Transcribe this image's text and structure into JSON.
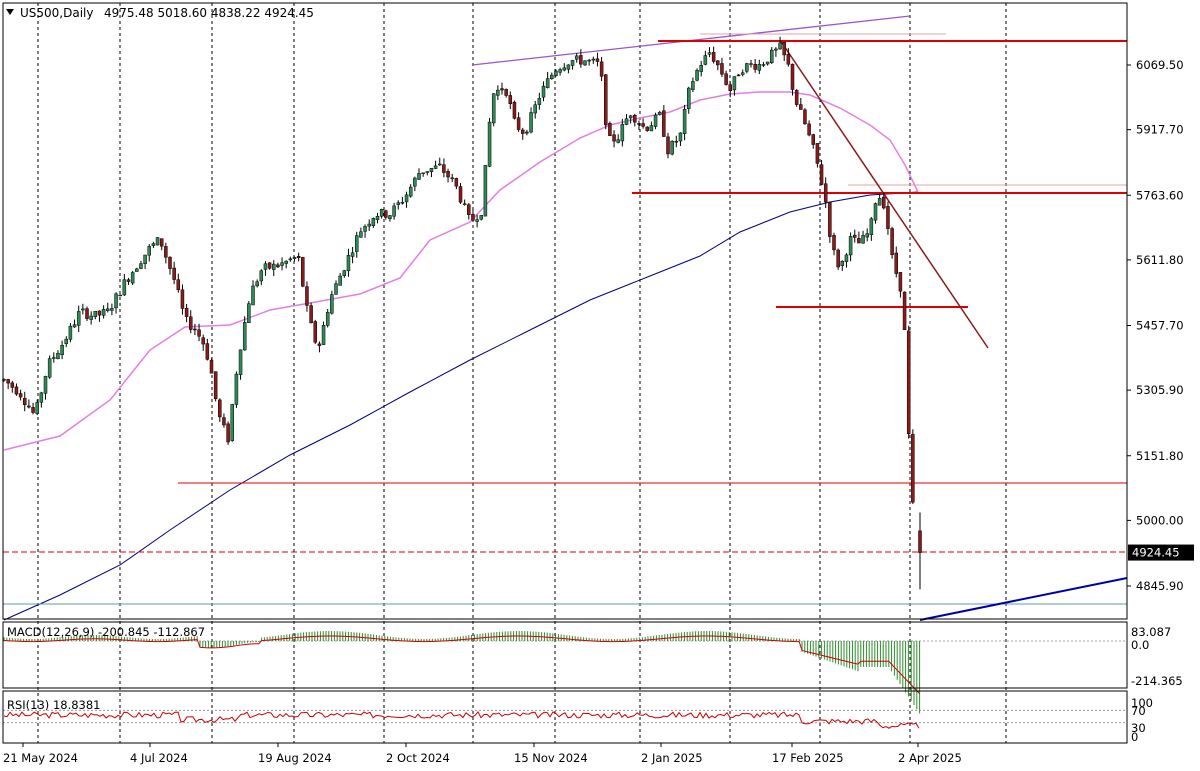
{
  "header": {
    "symbol": "US500,Daily",
    "ohlc": "4975.48 5018.60 4838.22 4924.45"
  },
  "chart_data": {
    "type": "candlestick",
    "symbol": "US500",
    "timeframe": "Daily",
    "ohlc_last": {
      "open": 4975.48,
      "high": 5018.6,
      "low": 4838.22,
      "close": 4924.45
    },
    "current_price_label": "4924.45",
    "y_ticks": [
      "6069.50",
      "5917.70",
      "5763.60",
      "5611.80",
      "5457.70",
      "5305.90",
      "5151.80",
      "5000.00",
      "4845.90"
    ],
    "y_tick_values": [
      6069.5,
      5917.7,
      5763.6,
      5611.8,
      5457.7,
      5305.9,
      5151.8,
      5000.0,
      4845.9
    ],
    "x_ticks": [
      "21 May 2024",
      "4 Jul 2024",
      "19 Aug 2024",
      "2 Oct 2024",
      "15 Nov 2024",
      "2 Jan 2025",
      "17 Feb 2025",
      "2 Apr 2025"
    ],
    "legend": "none",
    "grid": "vertical dashed",
    "macd": {
      "label": "MACD(12,26,9) -200.845 -112.867",
      "macd_value": -200.845,
      "signal_value": -112.867,
      "ticks": [
        "83.087",
        "0.0",
        "-214.365"
      ]
    },
    "rsi": {
      "label": "RSI(13) 18.8381",
      "value": 18.8381,
      "ticks": [
        "100",
        "70",
        "30",
        "0"
      ]
    }
  }
}
